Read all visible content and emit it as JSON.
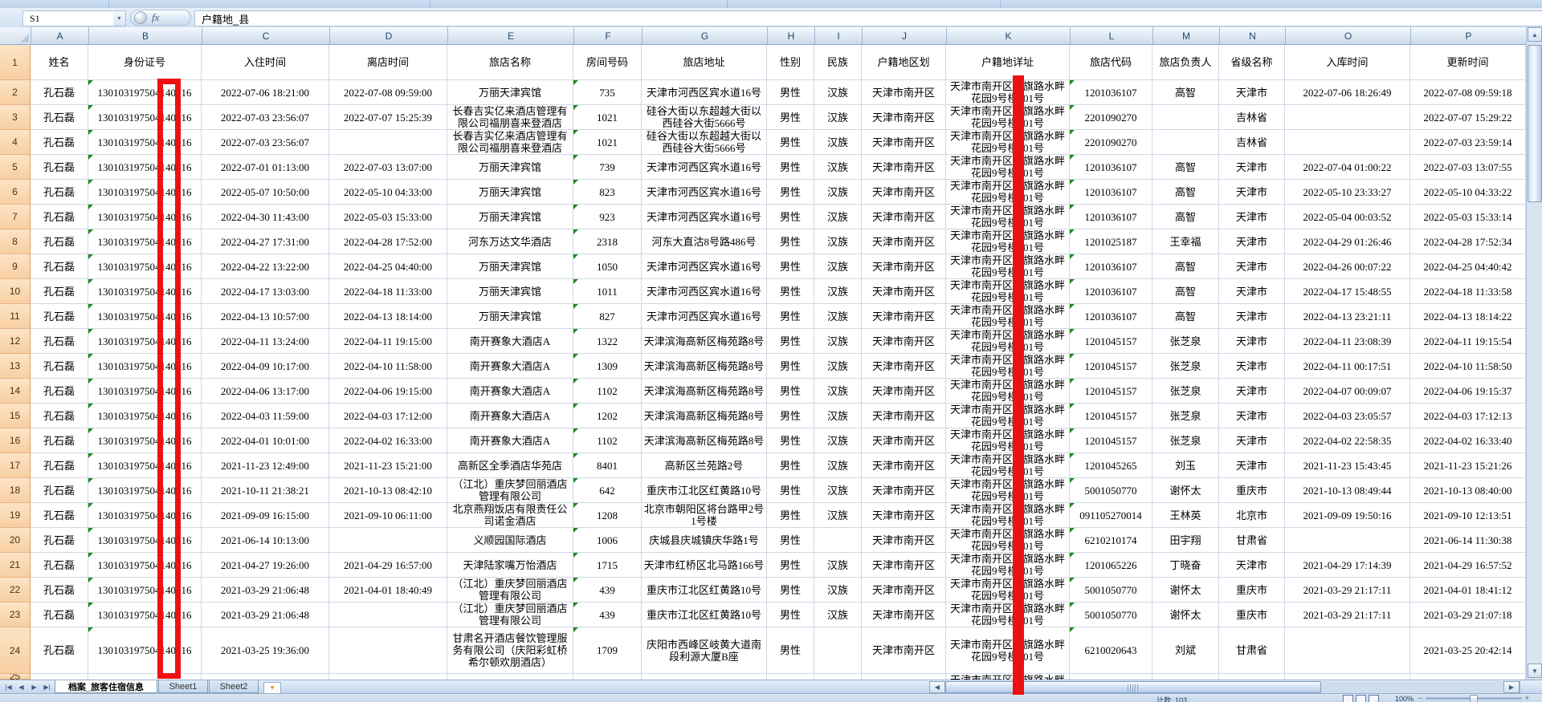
{
  "formula_bar": {
    "name_box": "S1",
    "fx_label": "fx",
    "formula": "户籍地_县"
  },
  "columns": [
    "A",
    "B",
    "C",
    "D",
    "E",
    "F",
    "G",
    "H",
    "I",
    "J",
    "K",
    "L",
    "M",
    "N",
    "O",
    "P"
  ],
  "header_row": [
    "姓名",
    "身份证号",
    "入住时间",
    "离店时间",
    "旅店名称",
    "房间号码",
    "旅店地址",
    "性别",
    "民族",
    "户籍地区划",
    "户籍地详址",
    "旅店代码",
    "旅店负责人",
    "省级名称",
    "入库时间",
    "更新时间"
  ],
  "rows": [
    [
      "孔石磊",
      "130103197504140016",
      "2022-07-06 18:21:00",
      "2022-07-08 09:59:00",
      "万丽天津宾馆",
      "735",
      "天津市河西区宾水道16号",
      "男性",
      "汉族",
      "天津市南开区",
      "天津市南开区红旗路水畔花园9号楼101号",
      "1201036107",
      "高智",
      "天津市",
      "2022-07-06 18:26:49",
      "2022-07-08 09:59:18"
    ],
    [
      "孔石磊",
      "130103197504140016",
      "2022-07-03 23:56:07",
      "2022-07-07 15:25:39",
      "长春吉实亿来酒店管理有限公司福朋喜来登酒店",
      "1021",
      "硅谷大街以东超越大街以西硅谷大街5666号",
      "男性",
      "汉族",
      "天津市南开区",
      "天津市南开区红旗路水畔花园9号楼101号",
      "2201090270",
      "",
      "吉林省",
      "",
      "2022-07-07 15:29:22"
    ],
    [
      "孔石磊",
      "130103197504140016",
      "2022-07-03 23:56:07",
      "",
      "长春吉实亿来酒店管理有限公司福朋喜来登酒店",
      "1021",
      "硅谷大街以东超越大街以西硅谷大街5666号",
      "男性",
      "汉族",
      "天津市南开区",
      "天津市南开区红旗路水畔花园9号楼101号",
      "2201090270",
      "",
      "吉林省",
      "",
      "2022-07-03 23:59:14"
    ],
    [
      "孔石磊",
      "130103197504140016",
      "2022-07-01 01:13:00",
      "2022-07-03 13:07:00",
      "万丽天津宾馆",
      "739",
      "天津市河西区宾水道16号",
      "男性",
      "汉族",
      "天津市南开区",
      "天津市南开区红旗路水畔花园9号楼101号",
      "1201036107",
      "高智",
      "天津市",
      "2022-07-04 01:00:22",
      "2022-07-03 13:07:55"
    ],
    [
      "孔石磊",
      "130103197504140016",
      "2022-05-07 10:50:00",
      "2022-05-10 04:33:00",
      "万丽天津宾馆",
      "823",
      "天津市河西区宾水道16号",
      "男性",
      "汉族",
      "天津市南开区",
      "天津市南开区红旗路水畔花园9号楼101号",
      "1201036107",
      "高智",
      "天津市",
      "2022-05-10 23:33:27",
      "2022-05-10 04:33:22"
    ],
    [
      "孔石磊",
      "130103197504140016",
      "2022-04-30 11:43:00",
      "2022-05-03 15:33:00",
      "万丽天津宾馆",
      "923",
      "天津市河西区宾水道16号",
      "男性",
      "汉族",
      "天津市南开区",
      "天津市南开区红旗路水畔花园9号楼101号",
      "1201036107",
      "高智",
      "天津市",
      "2022-05-04 00:03:52",
      "2022-05-03 15:33:14"
    ],
    [
      "孔石磊",
      "130103197504140016",
      "2022-04-27 17:31:00",
      "2022-04-28 17:52:00",
      "河东万达文华酒店",
      "2318",
      "河东大直沽8号路486号",
      "男性",
      "汉族",
      "天津市南开区",
      "天津市南开区红旗路水畔花园9号楼101号",
      "1201025187",
      "王幸福",
      "天津市",
      "2022-04-29 01:26:46",
      "2022-04-28 17:52:34"
    ],
    [
      "孔石磊",
      "130103197504140016",
      "2022-04-22 13:22:00",
      "2022-04-25 04:40:00",
      "万丽天津宾馆",
      "1050",
      "天津市河西区宾水道16号",
      "男性",
      "汉族",
      "天津市南开区",
      "天津市南开区红旗路水畔花园9号楼101号",
      "1201036107",
      "高智",
      "天津市",
      "2022-04-26 00:07:22",
      "2022-04-25 04:40:42"
    ],
    [
      "孔石磊",
      "130103197504140016",
      "2022-04-17 13:03:00",
      "2022-04-18 11:33:00",
      "万丽天津宾馆",
      "1011",
      "天津市河西区宾水道16号",
      "男性",
      "汉族",
      "天津市南开区",
      "天津市南开区红旗路水畔花园9号楼101号",
      "1201036107",
      "高智",
      "天津市",
      "2022-04-17 15:48:55",
      "2022-04-18 11:33:58"
    ],
    [
      "孔石磊",
      "130103197504140016",
      "2022-04-13 10:57:00",
      "2022-04-13 18:14:00",
      "万丽天津宾馆",
      "827",
      "天津市河西区宾水道16号",
      "男性",
      "汉族",
      "天津市南开区",
      "天津市南开区红旗路水畔花园9号楼101号",
      "1201036107",
      "高智",
      "天津市",
      "2022-04-13 23:21:11",
      "2022-04-13 18:14:22"
    ],
    [
      "孔石磊",
      "130103197504140016",
      "2022-04-11 13:24:00",
      "2022-04-11 19:15:00",
      "南开赛象大酒店A",
      "1322",
      "天津滨海高新区梅苑路8号",
      "男性",
      "汉族",
      "天津市南开区",
      "天津市南开区红旗路水畔花园9号楼101号",
      "1201045157",
      "张芝泉",
      "天津市",
      "2022-04-11 23:08:39",
      "2022-04-11 19:15:54"
    ],
    [
      "孔石磊",
      "130103197504140016",
      "2022-04-09 10:17:00",
      "2022-04-10 11:58:00",
      "南开赛象大酒店A",
      "1309",
      "天津滨海高新区梅苑路8号",
      "男性",
      "汉族",
      "天津市南开区",
      "天津市南开区红旗路水畔花园9号楼101号",
      "1201045157",
      "张芝泉",
      "天津市",
      "2022-04-11 00:17:51",
      "2022-04-10 11:58:50"
    ],
    [
      "孔石磊",
      "130103197504140016",
      "2022-04-06 13:17:00",
      "2022-04-06 19:15:00",
      "南开赛象大酒店A",
      "1102",
      "天津滨海高新区梅苑路8号",
      "男性",
      "汉族",
      "天津市南开区",
      "天津市南开区红旗路水畔花园9号楼101号",
      "1201045157",
      "张芝泉",
      "天津市",
      "2022-04-07 00:09:07",
      "2022-04-06 19:15:37"
    ],
    [
      "孔石磊",
      "130103197504140016",
      "2022-04-03 11:59:00",
      "2022-04-03 17:12:00",
      "南开赛象大酒店A",
      "1202",
      "天津滨海高新区梅苑路8号",
      "男性",
      "汉族",
      "天津市南开区",
      "天津市南开区红旗路水畔花园9号楼101号",
      "1201045157",
      "张芝泉",
      "天津市",
      "2022-04-03 23:05:57",
      "2022-04-03 17:12:13"
    ],
    [
      "孔石磊",
      "130103197504140016",
      "2022-04-01 10:01:00",
      "2022-04-02 16:33:00",
      "南开赛象大酒店A",
      "1102",
      "天津滨海高新区梅苑路8号",
      "男性",
      "汉族",
      "天津市南开区",
      "天津市南开区红旗路水畔花园9号楼101号",
      "1201045157",
      "张芝泉",
      "天津市",
      "2022-04-02 22:58:35",
      "2022-04-02 16:33:40"
    ],
    [
      "孔石磊",
      "130103197504140016",
      "2021-11-23 12:49:00",
      "2021-11-23 15:21:00",
      "高新区全季酒店华苑店",
      "8401",
      "高新区兰苑路2号",
      "男性",
      "汉族",
      "天津市南开区",
      "天津市南开区红旗路水畔花园9号楼101号",
      "1201045265",
      "刘玉",
      "天津市",
      "2021-11-23 15:43:45",
      "2021-11-23 15:21:26"
    ],
    [
      "孔石磊",
      "130103197504140016",
      "2021-10-11 21:38:21",
      "2021-10-13 08:42:10",
      "（江北）重庆梦回丽酒店管理有限公司",
      "642",
      "重庆市江北区红黄路10号",
      "男性",
      "汉族",
      "天津市南开区",
      "天津市南开区红旗路水畔花园9号楼101号",
      "5001050770",
      "谢怀太",
      "重庆市",
      "2021-10-13 08:49:44",
      "2021-10-13 08:40:00"
    ],
    [
      "孔石磊",
      "130103197504140016",
      "2021-09-09 16:15:00",
      "2021-09-10 06:11:00",
      "北京燕翔饭店有限责任公司诺金酒店",
      "1208",
      "北京市朝阳区将台路甲2号1号楼",
      "男性",
      "汉族",
      "天津市南开区",
      "天津市南开区红旗路水畔花园9号楼101号",
      "091105270014",
      "王林英",
      "北京市",
      "2021-09-09 19:50:16",
      "2021-09-10 12:13:51"
    ],
    [
      "孔石磊",
      "130103197504140016",
      "2021-06-14 10:13:00",
      "",
      "义顺园国际酒店",
      "1006",
      "庆城县庆城镇庆华路1号",
      "男性",
      "",
      "天津市南开区",
      "天津市南开区红旗路水畔花园9号楼101号",
      "6210210174",
      "田宇翔",
      "甘肃省",
      "",
      "2021-06-14 11:30:38"
    ],
    [
      "孔石磊",
      "130103197504140016",
      "2021-04-27 19:26:00",
      "2021-04-29 16:57:00",
      "天津陆家嘴万怡酒店",
      "1715",
      "天津市红桥区北马路166号",
      "男性",
      "汉族",
      "天津市南开区",
      "天津市南开区红旗路水畔花园9号楼101号",
      "1201065226",
      "丁晓奋",
      "天津市",
      "2021-04-29 17:14:39",
      "2021-04-29 16:57:52"
    ],
    [
      "孔石磊",
      "130103197504140016",
      "2021-03-29 21:06:48",
      "2021-04-01 18:40:49",
      "（江北）重庆梦回丽酒店管理有限公司",
      "439",
      "重庆市江北区红黄路10号",
      "男性",
      "汉族",
      "天津市南开区",
      "天津市南开区红旗路水畔花园9号楼101号",
      "5001050770",
      "谢怀太",
      "重庆市",
      "2021-03-29 21:17:11",
      "2021-04-01 18:41:12"
    ],
    [
      "孔石磊",
      "130103197504140016",
      "2021-03-29 21:06:48",
      "",
      "（江北）重庆梦回丽酒店管理有限公司",
      "439",
      "重庆市江北区红黄路10号",
      "男性",
      "汉族",
      "天津市南开区",
      "天津市南开区红旗路水畔花园9号楼101号",
      "5001050770",
      "谢怀太",
      "重庆市",
      "2021-03-29 21:17:11",
      "2021-03-29 21:07:18"
    ],
    [
      "孔石磊",
      "130103197504140016",
      "2021-03-25 19:36:00",
      "",
      "甘肃名开酒店餐饮管理服务有限公司（庆阳彩虹桥希尔顿欢朋酒店）",
      "1709",
      "庆阳市西峰区岐黄大道南段利源大厦B座",
      "男性",
      "",
      "天津市南开区",
      "天津市南开区红旗路水畔花园9号楼101号",
      "6210020643",
      "刘斌",
      "甘肃省",
      "",
      "2021-03-25 20:42:14"
    ]
  ],
  "partial_row": {
    "k_address": "天津市南开区红旗路水畔花园9号楼101号"
  },
  "sheet_tabs": {
    "tabs": [
      "档案_旅客住宿信息",
      "Sheet1",
      "Sheet2"
    ],
    "active": "档案_旅客住宿信息"
  },
  "icons": {
    "namebox_dropdown": "▼",
    "scroll_up": "▲",
    "scroll_down": "▼",
    "scroll_left": "◀",
    "scroll_right": "▶",
    "tab_nav": [
      "|◀",
      "◀",
      "▶",
      "▶|"
    ],
    "insert_sheet": "✦"
  },
  "status_bar": {
    "count": "计数: 103",
    "zoom": "100%"
  },
  "colors": {
    "annotation_red": "#ee1111",
    "grid_line": "#d0d7e5",
    "row_header_bg": "#f8cfa2",
    "column_header_text": "#25476d"
  }
}
